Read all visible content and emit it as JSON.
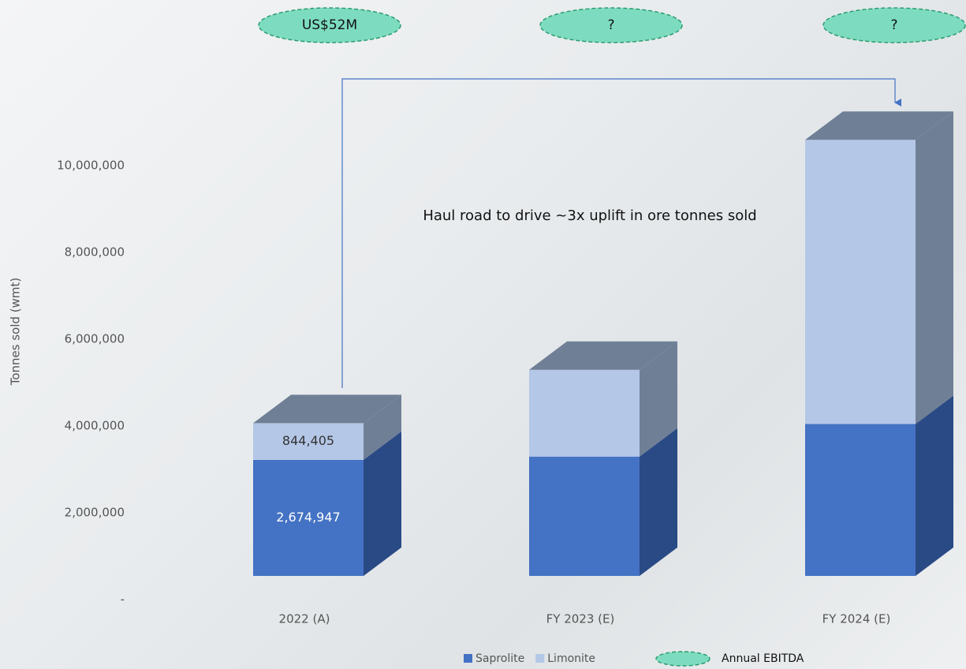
{
  "chart_data": {
    "type": "bar3d_stacked",
    "y_label": "Tonnes sold (wmt)",
    "annotation": "Haul road to drive ~3x uplift in ore tonnes sold",
    "categories": [
      "2022 (A)",
      "FY 2023 (E)",
      "FY 2024 (E)"
    ],
    "series": [
      {
        "name": "Saprolite",
        "color": "#4472c4",
        "side_color": "#2a4a85",
        "values": [
          2674947,
          2750000,
          3500000
        ],
        "value_labels": [
          "2,674,947",
          null,
          null
        ],
        "label_color": "#ffffff"
      },
      {
        "name": "Limonite",
        "color": "#b4c7e7",
        "side_color": "#6f7f96",
        "values": [
          844405,
          2000000,
          6550000
        ],
        "value_labels": [
          "844,405",
          null,
          null
        ],
        "label_color": "#333333"
      }
    ],
    "top_color": "#6f7f96",
    "ylim": [
      0,
      11000000
    ],
    "yticks": [
      {
        "value": 0,
        "label": "-"
      },
      {
        "value": 2000000,
        "label": "2,000,000"
      },
      {
        "value": 4000000,
        "label": "4,000,000"
      },
      {
        "value": 6000000,
        "label": "6,000,000"
      },
      {
        "value": 8000000,
        "label": "8,000,000"
      },
      {
        "value": 10000000,
        "label": "10,000,000"
      }
    ],
    "ebitda": {
      "name": "Annual EBITDA",
      "labels": [
        "US$52M",
        "?",
        "?"
      ],
      "color": "#7ddcc0"
    }
  }
}
